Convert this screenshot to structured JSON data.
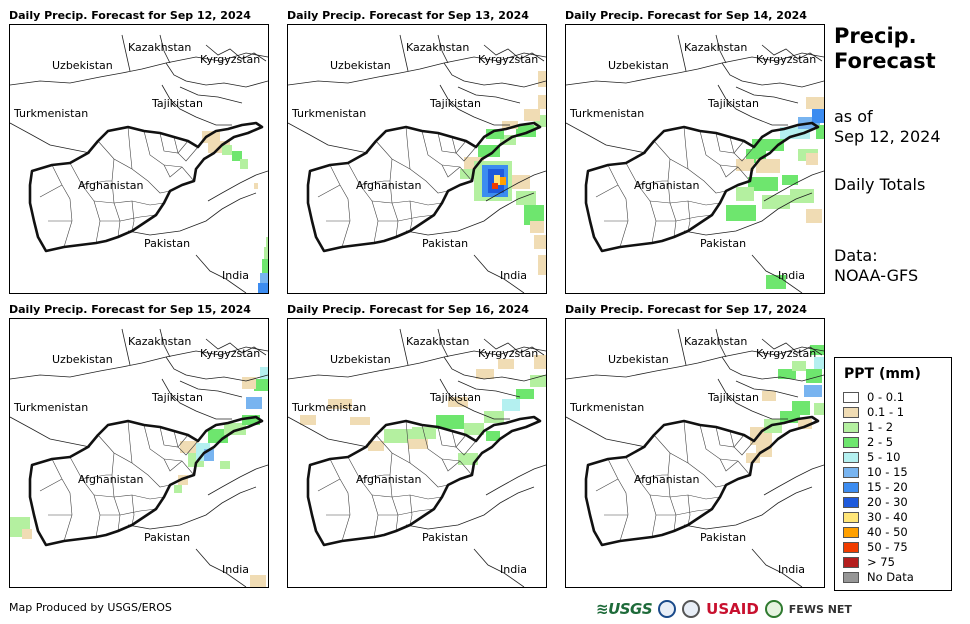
{
  "panels": [
    {
      "title": "Daily Precip. Forecast for Sep 12, 2024"
    },
    {
      "title": "Daily Precip. Forecast for Sep 13, 2024"
    },
    {
      "title": "Daily Precip. Forecast for Sep 14, 2024"
    },
    {
      "title": "Daily Precip. Forecast for Sep 15, 2024"
    },
    {
      "title": "Daily Precip. Forecast for Sep 16, 2024"
    },
    {
      "title": "Daily Precip. Forecast for Sep 17, 2024"
    }
  ],
  "map_labels": {
    "kazakhstan": "Kazakhstan",
    "uzbekistan": "Uzbekistan",
    "kyrgyzstan": "Kyrgyzstan",
    "tajikistan": "Tajikistan",
    "turkmenistan": "Turkmenistan",
    "afghanistan": "Afghanistan",
    "pakistan": "Pakistan",
    "india": "India"
  },
  "side": {
    "title_line1": "Precip.",
    "title_line2": "Forecast",
    "asof_line1": "as of",
    "asof_line2": "Sep 12, 2024",
    "totals": "Daily Totals",
    "data_line1": "Data:",
    "data_line2": "NOAA-GFS"
  },
  "legend": {
    "title": "PPT (mm)",
    "items": [
      {
        "label": "0 - 0.1",
        "color": "#ffffff"
      },
      {
        "label": "0.1 - 1",
        "color": "#f0dcb4"
      },
      {
        "label": "1 - 2",
        "color": "#b4f0a0"
      },
      {
        "label": "2 - 5",
        "color": "#6ee66e"
      },
      {
        "label": "5 - 10",
        "color": "#b4f0f0"
      },
      {
        "label": "10 - 15",
        "color": "#78b4f0"
      },
      {
        "label": "15 - 20",
        "color": "#3c8cf0"
      },
      {
        "label": "20 - 30",
        "color": "#1e5adc"
      },
      {
        "label": "30 - 40",
        "color": "#ffe678"
      },
      {
        "label": "40 - 50",
        "color": "#ffa000"
      },
      {
        "label": "50 - 75",
        "color": "#f03c00"
      },
      {
        "label": "> 75",
        "color": "#b41e1e"
      },
      {
        "label": "No Data",
        "color": "#969696"
      }
    ]
  },
  "footer": {
    "credit": "Map Produced by USGS/EROS",
    "logo_usgs": "≋USGS",
    "logo_usaid": "USAID",
    "logo_fewsnet": "FEWS NET"
  }
}
